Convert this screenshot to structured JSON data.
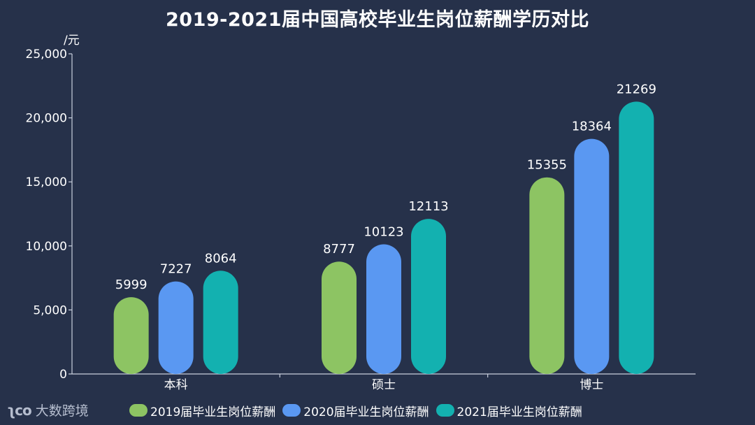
{
  "chart_data": {
    "type": "bar",
    "title": "2019-2021届中国高校毕业生岗位薪酬学历对比",
    "ylabel": "/元",
    "xlabel": "",
    "categories": [
      "本科",
      "硕士",
      "博士"
    ],
    "ylim": [
      0,
      25000
    ],
    "yticks": [
      0,
      5000,
      10000,
      15000,
      20000,
      25000
    ],
    "ytick_labels": [
      "0",
      "5,000",
      "10,000",
      "15,000",
      "20,000",
      "25,000"
    ],
    "series": [
      {
        "name": "2019届毕业生岗位薪酬",
        "color": "#8dc463",
        "values": [
          5999,
          8777,
          15355
        ]
      },
      {
        "name": "2020届毕业生岗位薪酬",
        "color": "#5a98f2",
        "values": [
          7227,
          10123,
          18364
        ]
      },
      {
        "name": "2021届毕业生岗位薪酬",
        "color": "#13b1b0",
        "values": [
          8064,
          12113,
          21269
        ]
      }
    ],
    "grid": false,
    "legend_position": "bottom"
  },
  "brand": {
    "logo_text": "ic",
    "name": "大数跨境"
  }
}
